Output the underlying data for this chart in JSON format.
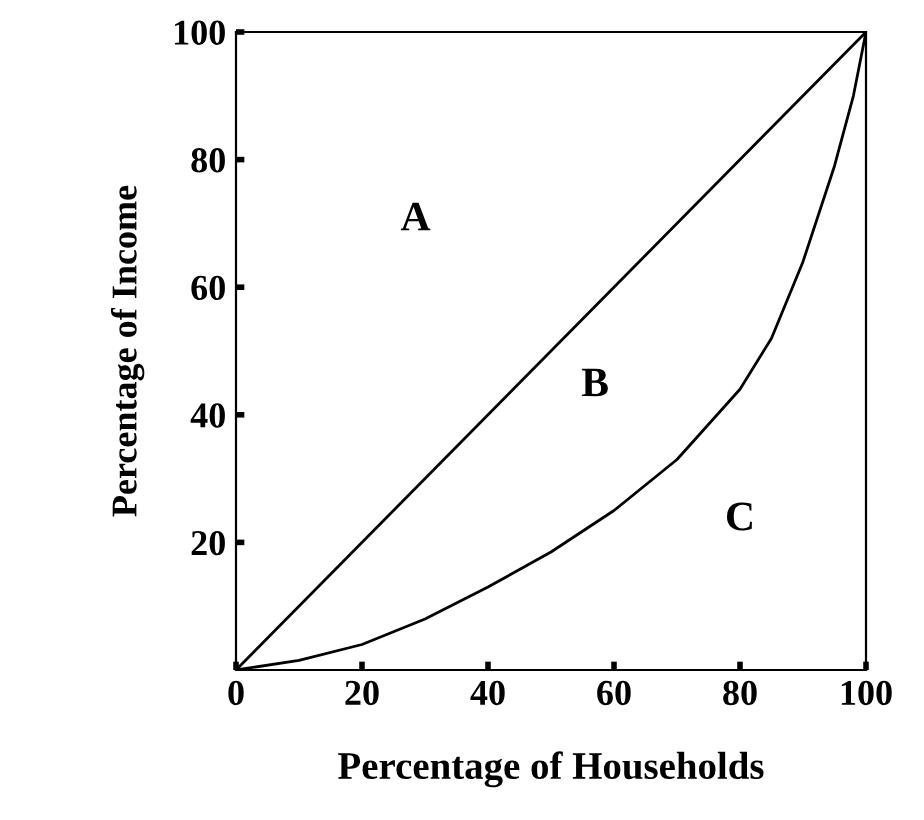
{
  "chart_data": {
    "type": "line",
    "xlabel": "Percentage of Households",
    "ylabel": "Percentage of Income",
    "series": [
      {
        "color": "#000000",
        "x": [
          0,
          100
        ],
        "values": [
          0,
          100
        ]
      },
      {
        "color": "#000000",
        "x": [
          0,
          10,
          20,
          30,
          40,
          50,
          60,
          70,
          80,
          85,
          90,
          95,
          98,
          100
        ],
        "values": [
          0,
          1.5,
          4,
          8,
          13,
          18.5,
          25,
          33,
          44,
          52,
          64,
          79,
          90,
          100
        ]
      }
    ],
    "annotations": [
      "A",
      "B",
      "C"
    ],
    "xlim": [
      0,
      100
    ],
    "ylim": [
      0,
      100
    ],
    "xticks": [
      0,
      20,
      40,
      60,
      80,
      100
    ],
    "yticks": [
      20,
      40,
      60,
      80,
      100
    ],
    "grid": false,
    "legend": false,
    "marker": "none",
    "line_style": "solid"
  }
}
